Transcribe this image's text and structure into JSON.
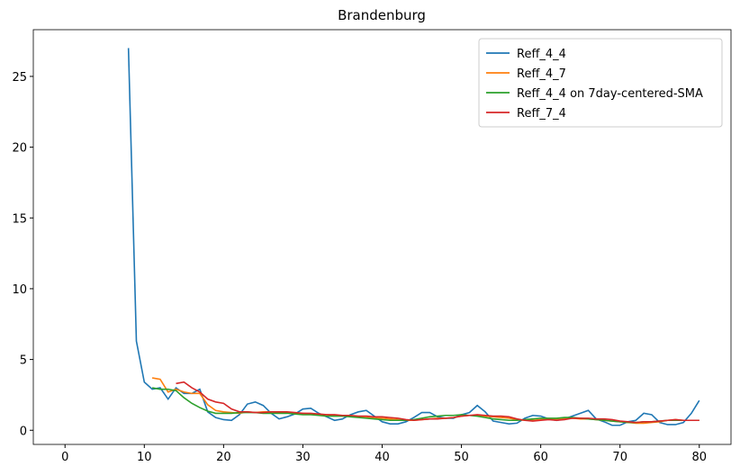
{
  "chart_data": {
    "type": "line",
    "title": "Brandenburg",
    "x": [
      8,
      9,
      10,
      11,
      12,
      13,
      14,
      15,
      16,
      17,
      18,
      19,
      20,
      21,
      22,
      23,
      24,
      25,
      26,
      27,
      28,
      29,
      30,
      31,
      32,
      33,
      34,
      35,
      36,
      37,
      38,
      39,
      40,
      41,
      42,
      43,
      44,
      45,
      46,
      47,
      48,
      49,
      50,
      51,
      52,
      53,
      54,
      55,
      56,
      57,
      58,
      59,
      60,
      61,
      62,
      63,
      64,
      65,
      66,
      67,
      68,
      69,
      70,
      71,
      72,
      73,
      74,
      75,
      76,
      77,
      78,
      79,
      80
    ],
    "series": [
      {
        "name": "Reff_4_4",
        "color": "#1f77b4",
        "values": [
          27,
          6.3,
          3.4,
          2.9,
          3.0,
          2.2,
          3.0,
          2.6,
          2.6,
          2.9,
          1.3,
          0.9,
          0.75,
          0.7,
          1.1,
          1.85,
          2.0,
          1.75,
          1.2,
          0.8,
          0.95,
          1.15,
          1.5,
          1.55,
          1.2,
          0.95,
          0.7,
          0.8,
          1.1,
          1.3,
          1.4,
          1.0,
          0.6,
          0.45,
          0.45,
          0.6,
          0.9,
          1.25,
          1.25,
          0.95,
          0.85,
          0.85,
          1.1,
          1.25,
          1.75,
          1.3,
          0.65,
          0.55,
          0.45,
          0.5,
          0.85,
          1.05,
          1.0,
          0.8,
          0.7,
          0.8,
          1.0,
          1.2,
          1.4,
          0.8,
          0.6,
          0.35,
          0.35,
          0.6,
          0.7,
          1.2,
          1.1,
          0.55,
          0.4,
          0.4,
          0.55,
          1.2,
          2.1
        ]
      },
      {
        "name": "Reff_4_7",
        "color": "#ff7f0e",
        "values": [
          null,
          null,
          null,
          3.7,
          3.6,
          2.7,
          2.9,
          2.7,
          2.6,
          2.6,
          1.8,
          1.4,
          1.3,
          1.25,
          1.2,
          1.3,
          1.25,
          1.3,
          1.3,
          1.25,
          1.25,
          1.2,
          1.2,
          1.15,
          1.1,
          1.1,
          1.05,
          1.0,
          1.0,
          0.95,
          0.9,
          0.85,
          0.85,
          0.8,
          0.75,
          0.7,
          0.7,
          0.75,
          0.8,
          0.85,
          0.85,
          0.9,
          1.0,
          1.05,
          1.05,
          1.0,
          0.95,
          0.9,
          0.85,
          0.75,
          0.7,
          0.7,
          0.75,
          0.8,
          0.8,
          0.85,
          0.85,
          0.8,
          0.8,
          0.75,
          0.7,
          0.65,
          0.6,
          0.55,
          0.5,
          0.5,
          0.55,
          0.6,
          0.7,
          0.75,
          0.7,
          0.7,
          0.7
        ]
      },
      {
        "name": "Reff_4_4 on 7day-centered-SMA",
        "color": "#2ca02c",
        "values": [
          null,
          null,
          null,
          3.0,
          2.9,
          2.9,
          2.8,
          2.3,
          1.9,
          1.6,
          1.35,
          1.2,
          1.2,
          1.2,
          1.25,
          1.25,
          1.25,
          1.2,
          1.2,
          1.2,
          1.2,
          1.15,
          1.1,
          1.1,
          1.05,
          1.0,
          1.0,
          1.0,
          0.95,
          0.9,
          0.85,
          0.8,
          0.75,
          0.7,
          0.7,
          0.7,
          0.75,
          0.85,
          0.95,
          1.0,
          1.05,
          1.05,
          1.1,
          1.05,
          1.0,
          0.9,
          0.8,
          0.75,
          0.7,
          0.7,
          0.75,
          0.8,
          0.85,
          0.85,
          0.85,
          0.9,
          0.9,
          0.85,
          0.8,
          0.75,
          0.7,
          0.65,
          0.6,
          0.55,
          0.55,
          0.6,
          0.6,
          0.65,
          0.7,
          0.7,
          0.7,
          0.7,
          0.7
        ]
      },
      {
        "name": "Reff_7_4",
        "color": "#d62728",
        "values": [
          null,
          null,
          null,
          null,
          null,
          null,
          3.3,
          3.4,
          3.0,
          2.7,
          2.2,
          2.0,
          1.9,
          1.5,
          1.3,
          1.3,
          1.25,
          1.25,
          1.3,
          1.3,
          1.3,
          1.25,
          1.2,
          1.2,
          1.15,
          1.1,
          1.1,
          1.05,
          1.05,
          1.0,
          1.0,
          0.95,
          0.95,
          0.9,
          0.85,
          0.75,
          0.7,
          0.75,
          0.8,
          0.8,
          0.85,
          0.9,
          1.0,
          1.05,
          1.1,
          1.05,
          1.0,
          1.0,
          0.95,
          0.8,
          0.7,
          0.65,
          0.7,
          0.75,
          0.7,
          0.75,
          0.85,
          0.85,
          0.85,
          0.8,
          0.8,
          0.75,
          0.65,
          0.6,
          0.55,
          0.6,
          0.6,
          0.65,
          0.7,
          0.75,
          0.7,
          0.7,
          0.7
        ]
      }
    ],
    "xlim": [
      -4,
      84
    ],
    "ylim": [
      -1.0,
      28.3
    ],
    "xticks": [
      0,
      10,
      20,
      30,
      40,
      50,
      60,
      70,
      80
    ],
    "yticks": [
      0,
      5,
      10,
      15,
      20,
      25
    ],
    "grid": false,
    "legend": "upper right"
  }
}
